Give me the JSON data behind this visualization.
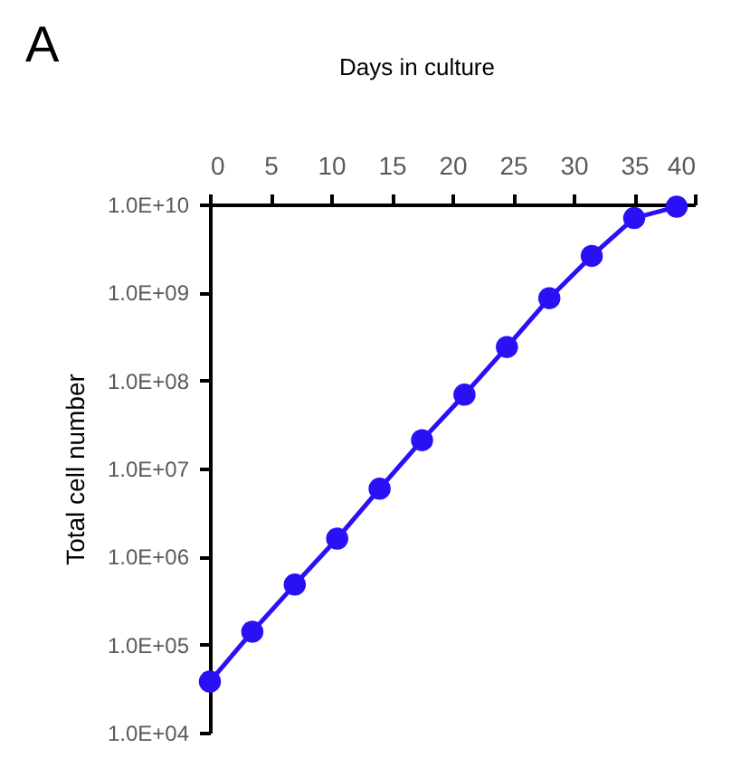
{
  "chart_data": {
    "type": "line",
    "title": "A",
    "xlabel": "Days in culture",
    "ylabel": "Total cell number",
    "x": [
      0,
      3.5,
      7,
      10.5,
      14,
      17.5,
      21,
      24.5,
      28,
      31.5,
      35,
      38.5
    ],
    "series": [
      {
        "color": "#2a10f5",
        "values": [
          38000,
          140000,
          480000,
          1600000,
          5900000,
          21000000,
          69000000,
          240000000,
          860000000,
          2600000000,
          7000000000,
          9400000000
        ]
      }
    ],
    "xlim": [
      0,
      40
    ],
    "xticks": [
      0,
      5,
      10,
      15,
      20,
      25,
      30,
      35,
      40
    ],
    "ylim": [
      10000,
      10000000000
    ],
    "log": "y",
    "yticks": [
      {
        "value": 10000,
        "label": "1.0E+04"
      },
      {
        "value": 100000,
        "label": "1.0E+05"
      },
      {
        "value": 1000000,
        "label": "1.0E+06"
      },
      {
        "value": 10000000,
        "label": "1.0E+07"
      },
      {
        "value": 100000000,
        "label": "1.0E+08"
      },
      {
        "value": 1000000000,
        "label": "1.0E+09"
      },
      {
        "value": 10000000000,
        "label": "1.0E+10"
      }
    ],
    "grid": false,
    "marker": "circle",
    "line_style": "solid"
  }
}
